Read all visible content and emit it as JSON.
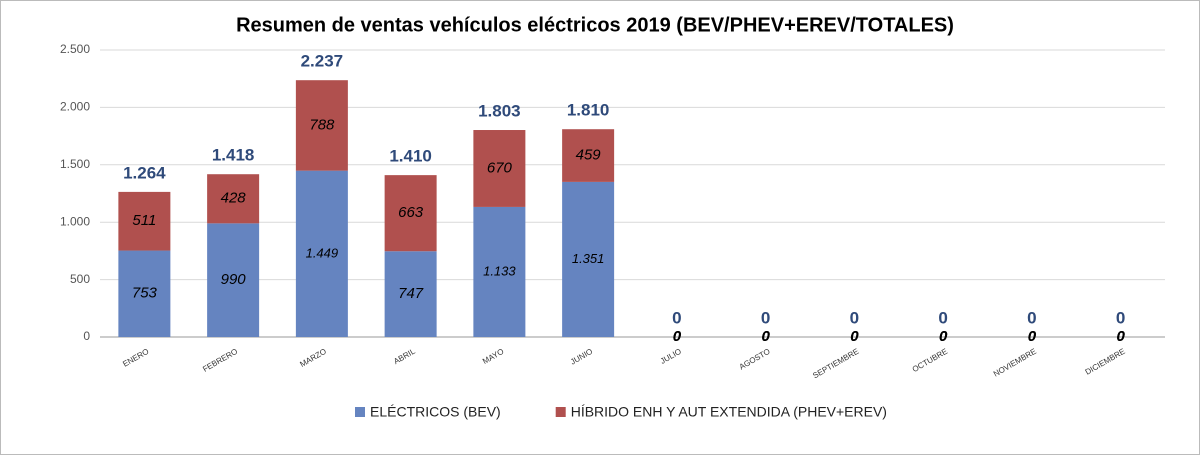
{
  "chart_data": {
    "type": "stacked_bar",
    "title": "Resumen de ventas vehículos eléctricos 2019 (BEV/PHEV+EREV/TOTALES)",
    "categories": [
      "ENERO",
      "FEBRERO",
      "MARZO",
      "ABRIL",
      "MAYO",
      "JUNIO",
      "JULIO",
      "AGOSTO",
      "SEPTIEMBRE",
      "OCTUBRE",
      "NOVIEMBRE",
      "DICIEMBRE"
    ],
    "series": [
      {
        "name": "ELÉCTRICOS (BEV)",
        "color": "#6584c0",
        "values": [
          753,
          990,
          1449,
          747,
          1133,
          1351,
          0,
          0,
          0,
          0,
          0,
          0
        ],
        "value_labels": [
          "753",
          "990",
          "1.449",
          "747",
          "1.133",
          "1.351",
          "0",
          "0",
          "0",
          "0",
          "0",
          "0"
        ]
      },
      {
        "name": "HÍBRIDO ENH Y AUT EXTENDIDA (PHEV+EREV)",
        "color": "#b0504e",
        "values": [
          511,
          428,
          788,
          663,
          670,
          459,
          0,
          0,
          0,
          0,
          0,
          0
        ],
        "value_labels": [
          "511",
          "428",
          "788",
          "663",
          "670",
          "459",
          "0",
          "0",
          "0",
          "0",
          "0",
          "0"
        ]
      }
    ],
    "totals": {
      "values": [
        1264,
        1418,
        2237,
        1410,
        1803,
        1810,
        0,
        0,
        0,
        0,
        0,
        0
      ],
      "value_labels": [
        "1.264",
        "1.418",
        "2.237",
        "1.410",
        "1.803",
        "1.810",
        "0",
        "0",
        "0",
        "0",
        "0",
        "0"
      ]
    },
    "ylim": [
      0,
      2500
    ],
    "yticks": [
      0,
      500,
      {
        "value": 1000,
        "label": "1.000"
      },
      {
        "value": 1500,
        "label": "1.500"
      },
      {
        "value": 2000,
        "label": "2.000"
      },
      {
        "value": 2500,
        "label": "2.500"
      }
    ],
    "grid": true,
    "legend": "bottom"
  }
}
